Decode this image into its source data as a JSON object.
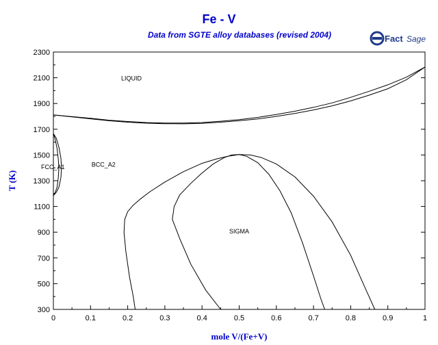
{
  "chart_data": {
    "type": "line",
    "title": "Fe - V",
    "subtitle": "Data from SGTE alloy databases (revised 2004)",
    "xlabel": "mole V/(Fe+V)",
    "ylabel": "T (K)",
    "xlim": [
      0,
      1
    ],
    "ylim": [
      300,
      2300
    ],
    "xticks": [
      0,
      0.1,
      0.2,
      0.3,
      0.4,
      0.5,
      0.6,
      0.7,
      0.8,
      0.9,
      1
    ],
    "xtick_labels": [
      "0",
      "0.1",
      "0.2",
      "0.3",
      "0.4",
      "0.5",
      "0.6",
      "0.7",
      "0.8",
      "0.9",
      "1"
    ],
    "yticks": [
      300,
      500,
      700,
      900,
      1100,
      1300,
      1500,
      1700,
      1900,
      2100,
      2300
    ],
    "grid": false,
    "legend": "none",
    "line_color": "#000000",
    "text_color": "#0000cc",
    "logo_text": "FactSage",
    "region_labels": [
      {
        "text": "LIQUID",
        "x": 0.21,
        "y": 2080
      },
      {
        "text": "BCC_A2",
        "x": 0.135,
        "y": 1410
      },
      {
        "text": "FCC_A1",
        "x": 0,
        "y": 1390
      },
      {
        "text": "SIGMA",
        "x": 0.5,
        "y": 890
      }
    ],
    "series": [
      {
        "id": "liquidus",
        "x": [
          0,
          0.05,
          0.1,
          0.15,
          0.2,
          0.25,
          0.3,
          0.35,
          0.4,
          0.45,
          0.5,
          0.55,
          0.6,
          0.65,
          0.7,
          0.75,
          0.8,
          0.85,
          0.9,
          0.95,
          1
        ],
        "y": [
          1811,
          1798,
          1785,
          1770,
          1760,
          1752,
          1748,
          1748,
          1752,
          1762,
          1775,
          1792,
          1815,
          1840,
          1870,
          1905,
          1948,
          1995,
          2045,
          2105,
          2183
        ]
      },
      {
        "id": "solidus",
        "x": [
          0,
          0.05,
          0.1,
          0.15,
          0.2,
          0.25,
          0.3,
          0.35,
          0.4,
          0.45,
          0.5,
          0.55,
          0.6,
          0.65,
          0.7,
          0.75,
          0.8,
          0.85,
          0.9,
          0.95,
          1
        ],
        "y": [
          1811,
          1796,
          1781,
          1766,
          1755,
          1747,
          1743,
          1742,
          1746,
          1755,
          1766,
          1780,
          1800,
          1823,
          1850,
          1882,
          1920,
          1965,
          2015,
          2085,
          2183
        ]
      },
      {
        "id": "fcc-outer",
        "x": [
          0,
          0.008,
          0.015,
          0.02,
          0.022,
          0.02,
          0.015,
          0.008,
          0
        ],
        "y": [
          1667,
          1630,
          1560,
          1480,
          1400,
          1320,
          1250,
          1210,
          1185
        ]
      },
      {
        "id": "fcc-inner",
        "x": [
          0,
          0.005,
          0.01,
          0.013,
          0.015,
          0.013,
          0.01,
          0.005,
          0
        ],
        "y": [
          1667,
          1620,
          1550,
          1470,
          1400,
          1320,
          1250,
          1210,
          1185
        ]
      },
      {
        "id": "sigma-outer",
        "x": [
          0.22,
          0.215,
          0.205,
          0.195,
          0.19,
          0.192,
          0.2,
          0.215,
          0.235,
          0.26,
          0.3,
          0.35,
          0.4,
          0.44,
          0.47,
          0.5,
          0.53,
          0.56,
          0.6,
          0.65,
          0.7,
          0.75,
          0.8,
          0.84,
          0.865
        ],
        "y": [
          300,
          400,
          550,
          750,
          900,
          1000,
          1060,
          1110,
          1160,
          1215,
          1290,
          1370,
          1435,
          1470,
          1490,
          1503,
          1500,
          1480,
          1430,
          1330,
          1180,
          980,
          720,
          460,
          300
        ]
      },
      {
        "id": "sigma-inner",
        "x": [
          0.45,
          0.41,
          0.37,
          0.34,
          0.32,
          0.325,
          0.34,
          0.37,
          0.4,
          0.43,
          0.46,
          0.48,
          0.5,
          0.52,
          0.55,
          0.58,
          0.61,
          0.64,
          0.67,
          0.7,
          0.72,
          0.73
        ],
        "y": [
          300,
          450,
          650,
          850,
          1000,
          1100,
          1190,
          1280,
          1360,
          1430,
          1480,
          1500,
          1503,
          1490,
          1440,
          1350,
          1220,
          1050,
          820,
          560,
          380,
          300
        ]
      }
    ]
  }
}
